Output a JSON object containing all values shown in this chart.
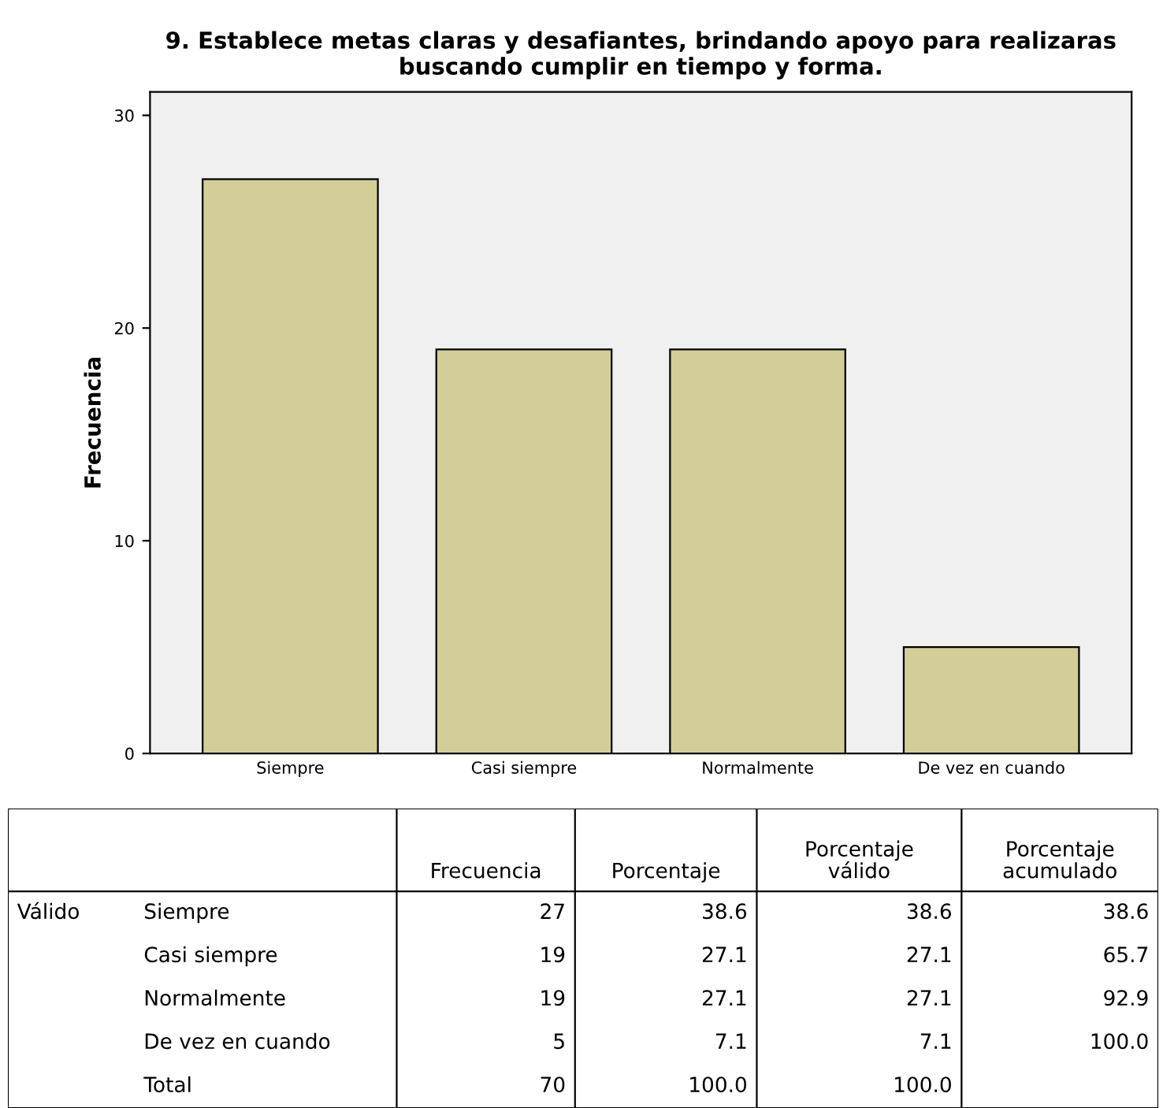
{
  "chart_data": [
    {
      "type": "bar",
      "title": "9. Establece metas claras y desafiantes, brindando apoyo para realizaras\nbuscando cumplir en tiempo y forma.",
      "ylabel": "Frecuencia",
      "categories": [
        "Siempre",
        "Casi siempre",
        "Normalmente",
        "De vez en cuando"
      ],
      "values": [
        27,
        19,
        19,
        5
      ],
      "color": "#d3ce98",
      "ylim": [
        0,
        31.1
      ],
      "yticks": [
        0,
        10,
        20,
        30
      ],
      "grid": false
    },
    {
      "type": "other",
      "categories": [
        null,
        null,
        "Frecuencia",
        "Porcentaje",
        "Porcentaje\nválido",
        "Porcentaje\nacumulado"
      ],
      "cell_labels": [
        [
          "Válido",
          "Siempre",
          "27",
          "38.6",
          "38.6",
          "38.6"
        ],
        [
          null,
          "Casi siempre",
          "19",
          "27.1",
          "27.1",
          "65.7"
        ],
        [
          null,
          "Normalmente",
          "19",
          "27.1",
          "27.1",
          "92.9"
        ],
        [
          null,
          "De vez en cuando",
          "5",
          "7.1",
          "7.1",
          "100.0"
        ],
        [
          null,
          "Total",
          "70",
          "100.0",
          "100.0",
          null
        ]
      ]
    }
  ]
}
